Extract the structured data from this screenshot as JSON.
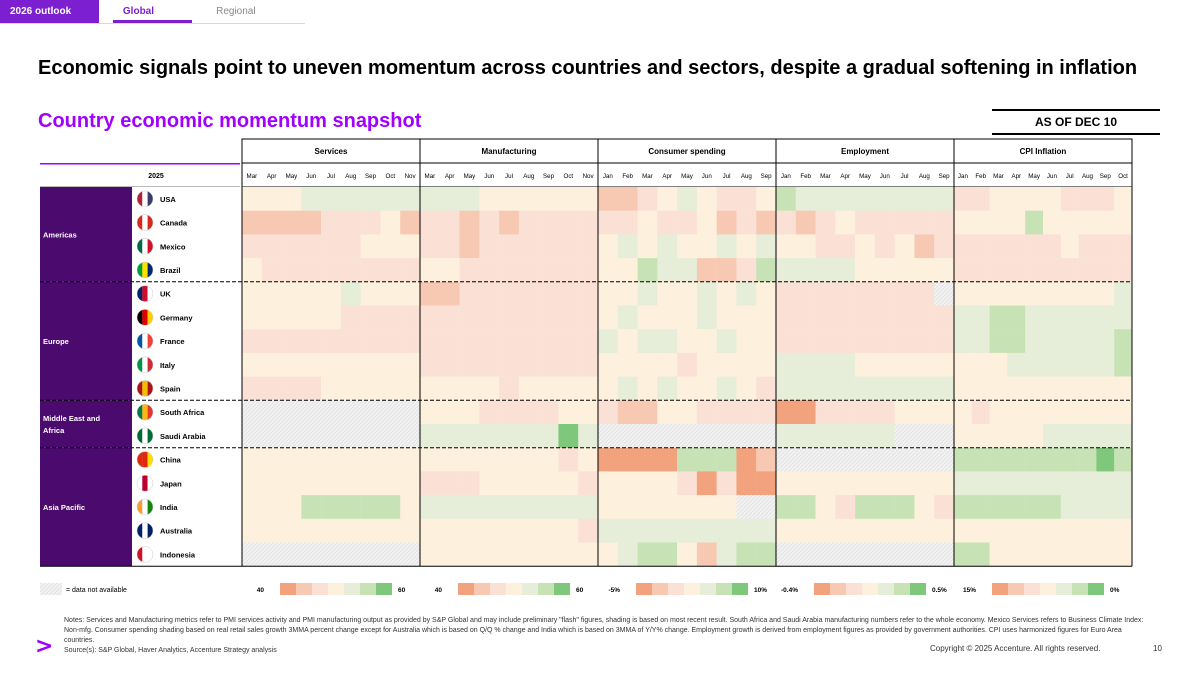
{
  "tabs": {
    "primary": "2026 outlook",
    "selected": "Global",
    "other": "Regional"
  },
  "title": "Economic signals point to uneven momentum across countries and sectors, despite a gradual softening in inflation",
  "subtitle": "Country economic momentum snapshot",
  "as_of": "AS OF DEC 10",
  "year_label": "2025",
  "legend": {
    "na_label": "= data not available"
  },
  "colors": {
    "accent": "#a100ff",
    "region_bg": "#4b0a6e",
    "strong_neg": "#f2a27c",
    "neg": "#f8c9b2",
    "mild_neg": "#fbe0d5",
    "neutral": "#fdf0dc",
    "mild_pos": "#e6edd9",
    "pos": "#c7e3b5",
    "strong_pos": "#7fc77a",
    "na": "#ececec"
  },
  "chart_data": {
    "type": "heatmap",
    "panels": [
      {
        "name": "Services",
        "months": [
          "Mar",
          "Apr",
          "May",
          "Jun",
          "Jul",
          "Aug",
          "Sep",
          "Oct",
          "Nov"
        ],
        "scale_low": "40",
        "scale_high": "60"
      },
      {
        "name": "Manufacturing",
        "months": [
          "Mar",
          "Apr",
          "May",
          "Jun",
          "Jul",
          "Aug",
          "Sep",
          "Oct",
          "Nov"
        ],
        "scale_low": "40",
        "scale_high": "60"
      },
      {
        "name": "Consumer spending",
        "months": [
          "Jan",
          "Feb",
          "Mar",
          "Apr",
          "May",
          "Jun",
          "Jul",
          "Aug",
          "Sep"
        ],
        "scale_low": "-5%",
        "scale_high": "10%"
      },
      {
        "name": "Employment",
        "months": [
          "Jan",
          "Feb",
          "Mar",
          "Apr",
          "May",
          "Jun",
          "Jul",
          "Aug",
          "Sep"
        ],
        "scale_low": "-0.4%",
        "scale_high": "0.5%"
      },
      {
        "name": "CPI Inflation",
        "months": [
          "Jan",
          "Feb",
          "Mar",
          "Apr",
          "May",
          "Jun",
          "Jul",
          "Aug",
          "Sep",
          "Oct"
        ],
        "scale_low": "15%",
        "scale_high": "0%"
      }
    ],
    "regions": [
      {
        "name": "Americas",
        "countries": [
          "USA",
          "Canada",
          "Mexico",
          "Brazil"
        ]
      },
      {
        "name": "Europe",
        "countries": [
          "UK",
          "Germany",
          "France",
          "Italy",
          "Spain"
        ]
      },
      {
        "name": "Middle East and Africa",
        "countries": [
          "South Africa",
          "Saudi Arabia"
        ]
      },
      {
        "name": "Asia Pacific",
        "countries": [
          "China",
          "Japan",
          "India",
          "Australia",
          "Indonesia"
        ]
      }
    ],
    "value_scale": "levels -3 (strong weak) to +3 (strong positive); 'x' = data not available",
    "cells": {
      "USA": [
        [
          0,
          0,
          0,
          1,
          1,
          1,
          1,
          1,
          1
        ],
        [
          1,
          1,
          1,
          0,
          0,
          0,
          0,
          0,
          0
        ],
        [
          -2,
          -2,
          -1,
          0,
          1,
          0,
          -1,
          -1,
          0
        ],
        [
          2,
          1,
          1,
          1,
          1,
          1,
          1,
          1,
          1
        ],
        [
          -1,
          -1,
          0,
          0,
          0,
          0,
          -1,
          -1,
          -1,
          0
        ]
      ],
      "Canada": [
        [
          -2,
          -2,
          -2,
          -2,
          -1,
          -1,
          -1,
          0,
          -2
        ],
        [
          -1,
          -1,
          -2,
          -1,
          -2,
          -1,
          -1,
          -1,
          -1
        ],
        [
          -1,
          -1,
          0,
          -1,
          -1,
          0,
          -2,
          -1,
          -2
        ],
        [
          -1,
          -2,
          -1,
          0,
          -1,
          -1,
          -1,
          -1,
          -1
        ],
        [
          0,
          0,
          0,
          0,
          2,
          0,
          0,
          0,
          0,
          0
        ]
      ],
      "Mexico": [
        [
          -1,
          -1,
          -1,
          -1,
          -1,
          -1,
          0,
          0,
          0
        ],
        [
          -1,
          -1,
          -2,
          -1,
          -1,
          -1,
          -1,
          -1,
          -1
        ],
        [
          0,
          1,
          0,
          1,
          0,
          0,
          1,
          0,
          1
        ],
        [
          0,
          0,
          -1,
          -1,
          0,
          -1,
          0,
          -2,
          -1
        ],
        [
          -1,
          -1,
          -1,
          -1,
          -1,
          -1,
          0,
          -1,
          -1,
          -1
        ]
      ],
      "Brazil": [
        [
          0,
          -1,
          -1,
          -1,
          -1,
          -1,
          -1,
          -1,
          -1
        ],
        [
          0,
          0,
          -1,
          -1,
          -1,
          -1,
          -1,
          -1,
          -1
        ],
        [
          0,
          0,
          2,
          1,
          1,
          -2,
          -2,
          -1,
          2
        ],
        [
          1,
          1,
          1,
          1,
          0,
          0,
          0,
          0,
          0
        ],
        [
          -1,
          -1,
          -1,
          -1,
          -1,
          -1,
          -1,
          -1,
          -1,
          -1
        ]
      ],
      "UK": [
        [
          0,
          0,
          0,
          0,
          0,
          1,
          0,
          0,
          0
        ],
        [
          -2,
          -2,
          -1,
          -1,
          -1,
          -1,
          -1,
          -1,
          -1
        ],
        [
          0,
          0,
          1,
          0,
          0,
          1,
          0,
          1,
          0
        ],
        [
          -1,
          -1,
          -1,
          -1,
          -1,
          -1,
          -1,
          -1,
          "x"
        ],
        [
          0,
          0,
          0,
          0,
          0,
          0,
          0,
          0,
          0,
          1
        ]
      ],
      "Germany": [
        [
          0,
          0,
          0,
          0,
          0,
          -1,
          -1,
          -1,
          -1
        ],
        [
          -1,
          -1,
          -1,
          -1,
          -1,
          -1,
          -1,
          -1,
          -1
        ],
        [
          0,
          1,
          0,
          0,
          0,
          1,
          0,
          0,
          0
        ],
        [
          -1,
          -1,
          -1,
          -1,
          -1,
          -1,
          -1,
          -1,
          -1
        ],
        [
          1,
          1,
          2,
          2,
          1,
          1,
          1,
          1,
          1,
          1
        ]
      ],
      "France": [
        [
          -1,
          -1,
          -1,
          -1,
          -1,
          -1,
          -1,
          -1,
          -1
        ],
        [
          -1,
          -1,
          -1,
          -1,
          -1,
          -1,
          -1,
          -1,
          -1
        ],
        [
          1,
          0,
          1,
          1,
          0,
          0,
          1,
          0,
          0
        ],
        [
          -1,
          -1,
          -1,
          -1,
          -1,
          -1,
          -1,
          -1,
          -1
        ],
        [
          1,
          1,
          2,
          2,
          1,
          1,
          1,
          1,
          1,
          2
        ]
      ],
      "Italy": [
        [
          0,
          0,
          0,
          0,
          0,
          0,
          0,
          0,
          0
        ],
        [
          -1,
          -1,
          -1,
          -1,
          -1,
          -1,
          -1,
          -1,
          -1
        ],
        [
          0,
          0,
          0,
          0,
          -1,
          0,
          0,
          0,
          0
        ],
        [
          1,
          1,
          1,
          1,
          0,
          0,
          0,
          0,
          0
        ],
        [
          0,
          0,
          0,
          1,
          1,
          1,
          1,
          1,
          1,
          2
        ]
      ],
      "Spain": [
        [
          -1,
          -1,
          -1,
          -1,
          0,
          0,
          0,
          0,
          0
        ],
        [
          0,
          0,
          0,
          0,
          -1,
          0,
          0,
          0,
          0
        ],
        [
          0,
          1,
          0,
          1,
          0,
          0,
          1,
          0,
          -1
        ],
        [
          1,
          1,
          1,
          1,
          1,
          1,
          1,
          1,
          1
        ],
        [
          0,
          0,
          0,
          0,
          0,
          0,
          0,
          0,
          0,
          0
        ]
      ],
      "South Africa": [
        [
          "x",
          "x",
          "x",
          "x",
          "x",
          "x",
          "x",
          "x",
          "x"
        ],
        [
          0,
          0,
          0,
          -1,
          -1,
          -1,
          -1,
          0,
          0
        ],
        [
          -1,
          -2,
          -2,
          0,
          0,
          -1,
          -1,
          -1,
          -1
        ],
        [
          -3,
          -3,
          -1,
          -1,
          -1,
          -1,
          0,
          0,
          0
        ],
        [
          0,
          -1,
          0,
          0,
          0,
          0,
          0,
          0,
          0,
          0
        ]
      ],
      "Saudi Arabia": [
        [
          "x",
          "x",
          "x",
          "x",
          "x",
          "x",
          "x",
          "x",
          "x"
        ],
        [
          1,
          1,
          1,
          1,
          1,
          1,
          1,
          3,
          1
        ],
        [
          "x",
          "x",
          "x",
          "x",
          "x",
          "x",
          "x",
          "x",
          "x"
        ],
        [
          1,
          1,
          1,
          1,
          1,
          1,
          "x",
          "x",
          "x"
        ],
        [
          0,
          0,
          0,
          0,
          0,
          1,
          1,
          1,
          1,
          1
        ]
      ],
      "China": [
        [
          0,
          0,
          0,
          0,
          0,
          0,
          0,
          0,
          0
        ],
        [
          0,
          0,
          0,
          0,
          0,
          0,
          0,
          -1,
          0
        ],
        [
          -3,
          -3,
          -3,
          -3,
          2,
          2,
          2,
          -3,
          -2
        ],
        [
          "x",
          "x",
          "x",
          "x",
          "x",
          "x",
          "x",
          "x",
          "x"
        ],
        [
          2,
          2,
          2,
          2,
          2,
          2,
          2,
          2,
          3,
          2
        ]
      ],
      "Japan": [
        [
          0,
          0,
          0,
          0,
          0,
          0,
          0,
          0,
          0
        ],
        [
          -1,
          -1,
          -1,
          0,
          0,
          0,
          0,
          0,
          -1
        ],
        [
          0,
          0,
          0,
          0,
          -1,
          -3,
          -1,
          -3,
          -3
        ],
        [
          0,
          0,
          0,
          0,
          0,
          0,
          0,
          0,
          0
        ],
        [
          1,
          1,
          1,
          1,
          1,
          1,
          1,
          1,
          1,
          1
        ]
      ],
      "India": [
        [
          0,
          0,
          0,
          2,
          2,
          2,
          2,
          2,
          0
        ],
        [
          1,
          1,
          1,
          1,
          1,
          1,
          1,
          1,
          1
        ],
        [
          0,
          0,
          0,
          0,
          0,
          0,
          0,
          "x",
          "x"
        ],
        [
          2,
          2,
          0,
          -1,
          2,
          2,
          2,
          0,
          -1
        ],
        [
          2,
          2,
          2,
          2,
          2,
          2,
          1,
          1,
          1,
          1
        ]
      ],
      "Australia": [
        [
          0,
          0,
          0,
          0,
          0,
          0,
          0,
          0,
          0
        ],
        [
          0,
          0,
          0,
          0,
          0,
          0,
          0,
          0,
          -1
        ],
        [
          1,
          1,
          1,
          1,
          1,
          1,
          1,
          1,
          1
        ],
        [
          0,
          0,
          0,
          0,
          0,
          0,
          0,
          0,
          0
        ],
        [
          0,
          0,
          0,
          0,
          0,
          0,
          0,
          0,
          0,
          0
        ]
      ],
      "Indonesia": [
        [
          "x",
          "x",
          "x",
          "x",
          "x",
          "x",
          "x",
          "x",
          "x"
        ],
        [
          0,
          0,
          0,
          0,
          0,
          0,
          0,
          0,
          0
        ],
        [
          0,
          1,
          2,
          2,
          0,
          -2,
          1,
          2,
          2
        ],
        [
          "x",
          "x",
          "x",
          "x",
          "x",
          "x",
          "x",
          "x",
          "x"
        ],
        [
          2,
          2,
          0,
          0,
          0,
          0,
          0,
          0,
          0,
          0
        ]
      ]
    }
  },
  "notes": "Notes: Services and Manufacturing metrics refer to PMI services activity and PMI manufacturing output as provided by S&P Global and may include preliminary \"flash\" figures, shading is based on most recent result. South Africa and Saudi Arabia manufacturing numbers refer to the whole economy. Mexico Services refers to Business Climate Index: Non-mfg. Consumer spending shading based on real retail sales growth 3MMA percent change except for Australia which is based on Q/Q % change and India which is based on 3MMA of Y/Y% change. Employment growth is derived from employment figures as provided by government authorities. CPI uses harmonized figures for Euro Area countries.",
  "source": "Source(s): S&P Global, Haver Analytics, Accenture Strategy analysis",
  "copyright": "Copyright © 2025 Accenture. All rights reserved.",
  "page_number": "10",
  "logo_glyph": ">"
}
